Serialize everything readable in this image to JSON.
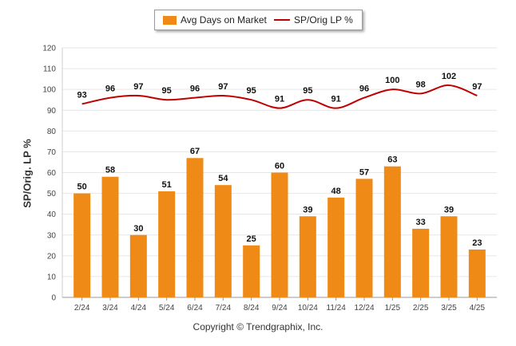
{
  "legend": {
    "bar_label": "Avg Days on Market",
    "line_label": "SP/Orig LP %"
  },
  "copyright": "Copyright © Trendgraphix, Inc.",
  "chart_data": {
    "type": "bar",
    "categories": [
      "2/24",
      "3/24",
      "4/24",
      "5/24",
      "6/24",
      "7/24",
      "8/24",
      "9/24",
      "10/24",
      "11/24",
      "12/24",
      "1/25",
      "2/25",
      "3/25",
      "4/25"
    ],
    "series": [
      {
        "name": "Avg Days on Market",
        "type": "bar",
        "values": [
          50,
          58,
          30,
          51,
          67,
          54,
          25,
          60,
          39,
          48,
          57,
          63,
          33,
          39,
          23
        ]
      },
      {
        "name": "SP/Orig LP %",
        "type": "line",
        "values": [
          93,
          96,
          97,
          95,
          96,
          97,
          95,
          91,
          95,
          91,
          96,
          100,
          98,
          102,
          97
        ]
      }
    ],
    "ylabel": "SP/Orig. LP %",
    "xlabel": "",
    "ylim": [
      0,
      120
    ],
    "yticks": [
      0,
      10,
      20,
      30,
      40,
      50,
      60,
      70,
      80,
      90,
      100,
      110,
      120
    ],
    "grid": true,
    "legend_position": "top-center",
    "colors": {
      "bar": "#ef8a17",
      "line": "#c00000",
      "grid": "#e6e6e6"
    }
  }
}
